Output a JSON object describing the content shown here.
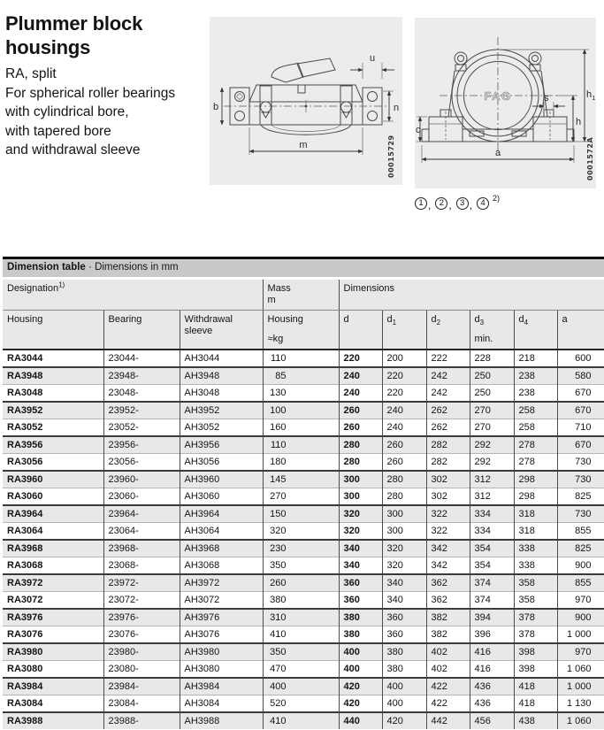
{
  "header": {
    "title_line1": "Plummer block",
    "title_line2": "housings",
    "subtitle_lines": [
      "RA, split",
      "For spherical roller bearings",
      "with cylindrical bore,",
      "with tapered bore",
      "and withdrawal sleeve"
    ]
  },
  "figures": {
    "fag_logo": "FAG",
    "left_code": "00015729",
    "right_code": "0001572A",
    "left_labels": {
      "u": "u",
      "b": "b",
      "n": "n",
      "m": "m"
    },
    "right_labels": {
      "h1": "h",
      "h1_sub": "1",
      "s": "s",
      "h": "h",
      "c": "c",
      "a": "a"
    },
    "callouts": [
      "1",
      "2",
      "3",
      "4"
    ],
    "callout_sep": ",",
    "callouts_footnote": "2)"
  },
  "table": {
    "band_title": "Dimension table",
    "band_sep": " · ",
    "band_subtitle": "Dimensions in mm",
    "designation_label": "Designation",
    "designation_sup": "1)",
    "mass_label": "Mass",
    "mass_symbol": "m",
    "dimensions_label": "Dimensions",
    "col_housing": "Housing",
    "col_bearing": "Bearing",
    "col_sleeve_line1": "Withdrawal",
    "col_sleeve_line2": "sleeve",
    "col_mass_housing": "Housing",
    "col_mass_unit": "≈kg",
    "dim_cols": [
      {
        "base": "d",
        "sub": ""
      },
      {
        "base": "d",
        "sub": "1"
      },
      {
        "base": "d",
        "sub": "2"
      },
      {
        "base": "d",
        "sub": "3"
      },
      {
        "base": "d",
        "sub": "4"
      },
      {
        "base": "a",
        "sub": ""
      }
    ],
    "d3_min": "min.",
    "rows": [
      {
        "housing": "RA3044",
        "bearing": "23044-",
        "sleeve": "AH3044",
        "mass": "110",
        "d": "220",
        "d1": "200",
        "d2": "222",
        "d3": "228",
        "d4": "218",
        "a": "600"
      },
      {
        "housing": "RA3948",
        "bearing": "23948-",
        "sleeve": "AH3948",
        "mass": "85",
        "d": "240",
        "d1": "220",
        "d2": "242",
        "d3": "250",
        "d4": "238",
        "a": "580"
      },
      {
        "housing": "RA3048",
        "bearing": "23048-",
        "sleeve": "AH3048",
        "mass": "130",
        "d": "240",
        "d1": "220",
        "d2": "242",
        "d3": "250",
        "d4": "238",
        "a": "670"
      },
      {
        "housing": "RA3952",
        "bearing": "23952-",
        "sleeve": "AH3952",
        "mass": "100",
        "d": "260",
        "d1": "240",
        "d2": "262",
        "d3": "270",
        "d4": "258",
        "a": "670"
      },
      {
        "housing": "RA3052",
        "bearing": "23052-",
        "sleeve": "AH3052",
        "mass": "160",
        "d": "260",
        "d1": "240",
        "d2": "262",
        "d3": "270",
        "d4": "258",
        "a": "710"
      },
      {
        "housing": "RA3956",
        "bearing": "23956-",
        "sleeve": "AH3956",
        "mass": "110",
        "d": "280",
        "d1": "260",
        "d2": "282",
        "d3": "292",
        "d4": "278",
        "a": "670"
      },
      {
        "housing": "RA3056",
        "bearing": "23056-",
        "sleeve": "AH3056",
        "mass": "180",
        "d": "280",
        "d1": "260",
        "d2": "282",
        "d3": "292",
        "d4": "278",
        "a": "730"
      },
      {
        "housing": "RA3960",
        "bearing": "23960-",
        "sleeve": "AH3960",
        "mass": "145",
        "d": "300",
        "d1": "280",
        "d2": "302",
        "d3": "312",
        "d4": "298",
        "a": "730"
      },
      {
        "housing": "RA3060",
        "bearing": "23060-",
        "sleeve": "AH3060",
        "mass": "270",
        "d": "300",
        "d1": "280",
        "d2": "302",
        "d3": "312",
        "d4": "298",
        "a": "825"
      },
      {
        "housing": "RA3964",
        "bearing": "23964-",
        "sleeve": "AH3964",
        "mass": "150",
        "d": "320",
        "d1": "300",
        "d2": "322",
        "d3": "334",
        "d4": "318",
        "a": "730"
      },
      {
        "housing": "RA3064",
        "bearing": "23064-",
        "sleeve": "AH3064",
        "mass": "320",
        "d": "320",
        "d1": "300",
        "d2": "322",
        "d3": "334",
        "d4": "318",
        "a": "855"
      },
      {
        "housing": "RA3968",
        "bearing": "23968-",
        "sleeve": "AH3968",
        "mass": "230",
        "d": "340",
        "d1": "320",
        "d2": "342",
        "d3": "354",
        "d4": "338",
        "a": "825"
      },
      {
        "housing": "RA3068",
        "bearing": "23068-",
        "sleeve": "AH3068",
        "mass": "350",
        "d": "340",
        "d1": "320",
        "d2": "342",
        "d3": "354",
        "d4": "338",
        "a": "900"
      },
      {
        "housing": "RA3972",
        "bearing": "23972-",
        "sleeve": "AH3972",
        "mass": "260",
        "d": "360",
        "d1": "340",
        "d2": "362",
        "d3": "374",
        "d4": "358",
        "a": "855"
      },
      {
        "housing": "RA3072",
        "bearing": "23072-",
        "sleeve": "AH3072",
        "mass": "380",
        "d": "360",
        "d1": "340",
        "d2": "362",
        "d3": "374",
        "d4": "358",
        "a": "970"
      },
      {
        "housing": "RA3976",
        "bearing": "23976-",
        "sleeve": "AH3976",
        "mass": "310",
        "d": "380",
        "d1": "360",
        "d2": "382",
        "d3": "394",
        "d4": "378",
        "a": "900"
      },
      {
        "housing": "RA3076",
        "bearing": "23076-",
        "sleeve": "AH3076",
        "mass": "410",
        "d": "380",
        "d1": "360",
        "d2": "382",
        "d3": "396",
        "d4": "378",
        "a": "1 000"
      },
      {
        "housing": "RA3980",
        "bearing": "23980-",
        "sleeve": "AH3980",
        "mass": "350",
        "d": "400",
        "d1": "380",
        "d2": "402",
        "d3": "416",
        "d4": "398",
        "a": "970"
      },
      {
        "housing": "RA3080",
        "bearing": "23080-",
        "sleeve": "AH3080",
        "mass": "470",
        "d": "400",
        "d1": "380",
        "d2": "402",
        "d3": "416",
        "d4": "398",
        "a": "1 060"
      },
      {
        "housing": "RA3984",
        "bearing": "23984-",
        "sleeve": "AH3984",
        "mass": "400",
        "d": "420",
        "d1": "400",
        "d2": "422",
        "d3": "436",
        "d4": "418",
        "a": "1 000"
      },
      {
        "housing": "RA3084",
        "bearing": "23084-",
        "sleeve": "AH3084",
        "mass": "520",
        "d": "420",
        "d1": "400",
        "d2": "422",
        "d3": "436",
        "d4": "418",
        "a": "1 130"
      },
      {
        "housing": "RA3988",
        "bearing": "23988-",
        "sleeve": "AH3988",
        "mass": "410",
        "d": "440",
        "d1": "420",
        "d2": "442",
        "d3": "456",
        "d4": "438",
        "a": "1 060"
      }
    ]
  }
}
